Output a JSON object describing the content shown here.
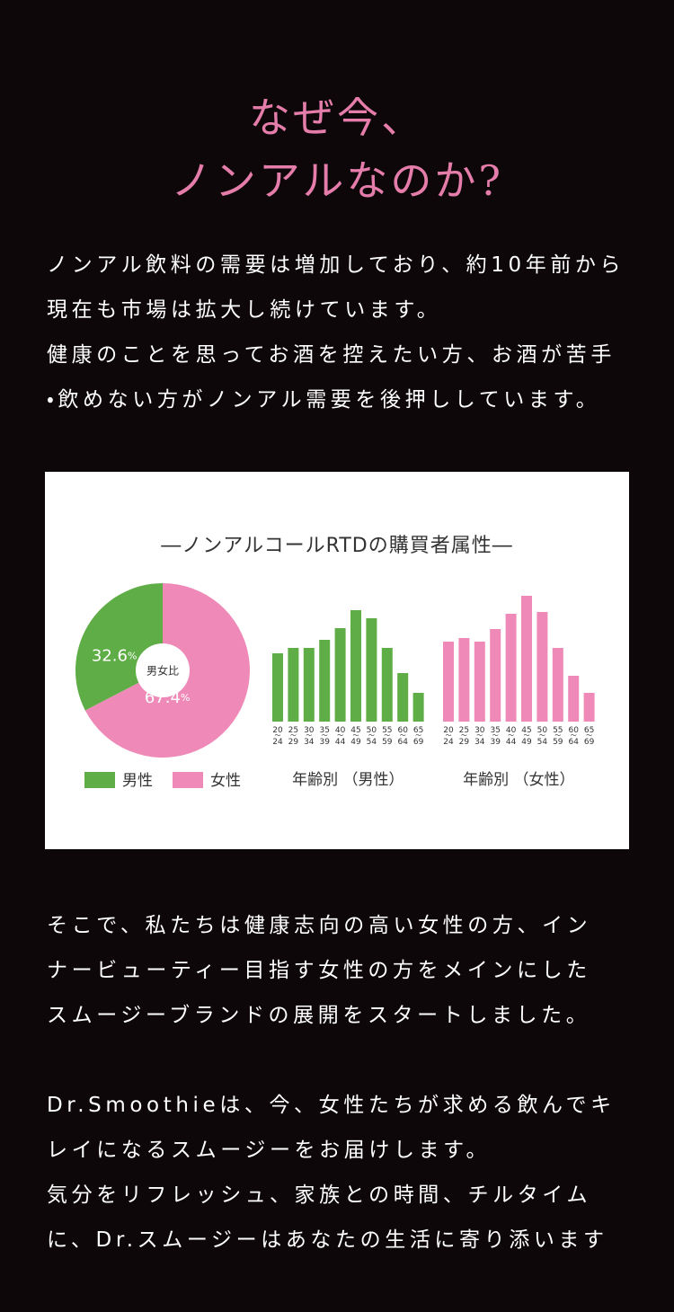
{
  "heading": [
    "なぜ今、",
    "ノンアルなのか?"
  ],
  "paragraphs": [
    [
      "ノンアル飲料の需要は増加しており、約10年前から",
      "現在も市場は拡大し続けています。",
      "健康のことを思ってお酒を控えたい方、お酒が苦手",
      "・飲めない方がノンアル需要を後押ししています。"
    ],
    [
      "そこで、私たちは健康志向の高い女性の方、イン",
      "ナービューティー目指す女性の方をメインにした",
      "スムージーブランドの展開をスタートしました。"
    ],
    [
      "Dr.Smoothieは、今、女性たちが求める飲んでキ",
      "レイになるスムージーをお届けします。",
      "気分をリフレッシュ、家族との時間、チルタイム",
      "に、Dr.スムージーはあなたの生活に寄り添います"
    ]
  ],
  "infographic_title": "―ノンアルコールRTDの購買者属性―",
  "chart_data": [
    {
      "type": "pie",
      "center_label": "男女比",
      "categories": [
        "男性",
        "女性"
      ],
      "values": [
        32.6,
        67.4
      ],
      "value_labels": [
        "32.6%",
        "67.4%"
      ],
      "colors": [
        "#5fad46",
        "#ef8ab8"
      ]
    },
    {
      "type": "bar",
      "title": "年齢別 （男性）",
      "categories": [
        "20〜24",
        "25〜29",
        "30〜34",
        "35〜39",
        "40〜44",
        "45〜49",
        "50〜54",
        "55〜59",
        "60〜64",
        "65〜69"
      ],
      "values": [
        76,
        82,
        82,
        91,
        104,
        124,
        115,
        82,
        54,
        32
      ],
      "color": "#5fad46"
    },
    {
      "type": "bar",
      "title": "年齢別 （女性）",
      "categories": [
        "20〜24",
        "25〜29",
        "30〜34",
        "35〜39",
        "40〜44",
        "45〜49",
        "50〜54",
        "55〜59",
        "60〜64",
        "65〜69"
      ],
      "values": [
        89,
        93,
        89,
        103,
        120,
        140,
        122,
        82,
        51,
        32
      ],
      "color": "#ef8ab8"
    }
  ]
}
